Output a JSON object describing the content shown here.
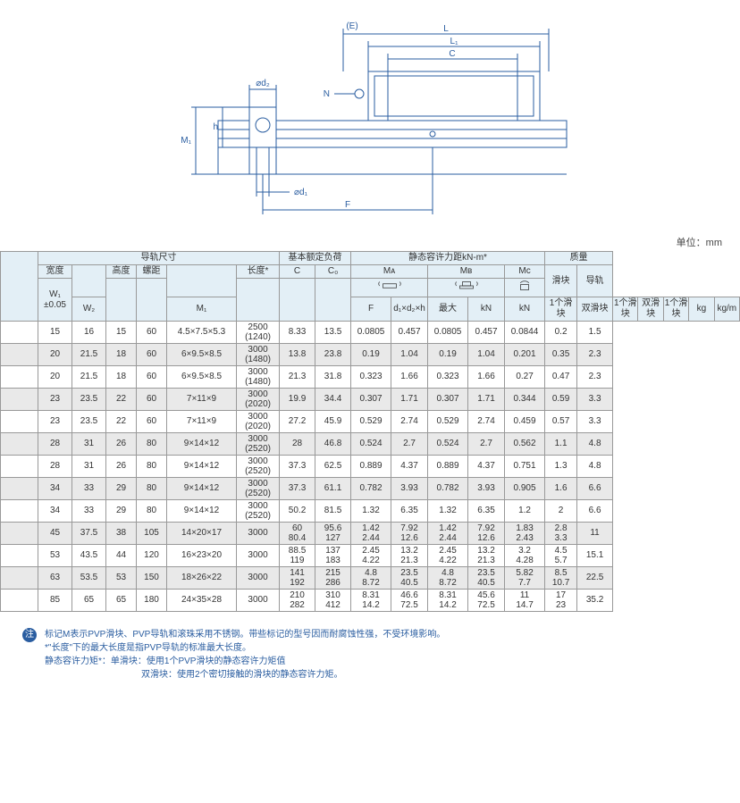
{
  "unit": "单位：mm",
  "headers": {
    "rail": "导轨尺寸",
    "load": "基本额定负荷",
    "moment": "静态容许力距kN-m*",
    "mass": "质量",
    "width": "宽度",
    "height": "高度",
    "pitch": "螺距",
    "length": "长度*",
    "max": "最大",
    "w1": "W₁\n±0.05",
    "w2": "W₂",
    "m1": "M₁",
    "f": "F",
    "d": "d₁×d₂×h",
    "c": "C",
    "c0": "C₀",
    "kn": "kN",
    "ma": "Mᴀ",
    "mb": "Mʙ",
    "mc": "Mᴄ",
    "single": "1个滑块",
    "double": "双滑块",
    "slider": "滑块",
    "rail_mass": "导轨",
    "kg": "kg",
    "kgm": "kg/m"
  },
  "rows": [
    {
      "w1": "15",
      "w2": "16",
      "m1": "15",
      "f": "60",
      "d": "4.5×7.5×5.3",
      "len": "2500\n(1240)",
      "c": "8.33",
      "c0": "13.5",
      "ma1": "0.0805",
      "ma2": "0.457",
      "mb1": "0.0805",
      "mb2": "0.457",
      "mc": "0.0844",
      "kg": "0.2",
      "kgm": "1.5",
      "alt": false
    },
    {
      "w1": "20",
      "w2": "21.5",
      "m1": "18",
      "f": "60",
      "d": "6×9.5×8.5",
      "len": "3000\n(1480)",
      "c": "13.8",
      "c0": "23.8",
      "ma1": "0.19",
      "ma2": "1.04",
      "mb1": "0.19",
      "mb2": "1.04",
      "mc": "0.201",
      "kg": "0.35",
      "kgm": "2.3",
      "alt": true
    },
    {
      "w1": "20",
      "w2": "21.5",
      "m1": "18",
      "f": "60",
      "d": "6×9.5×8.5",
      "len": "3000\n(1480)",
      "c": "21.3",
      "c0": "31.8",
      "ma1": "0.323",
      "ma2": "1.66",
      "mb1": "0.323",
      "mb2": "1.66",
      "mc": "0.27",
      "kg": "0.47",
      "kgm": "2.3",
      "alt": false
    },
    {
      "w1": "23",
      "w2": "23.5",
      "m1": "22",
      "f": "60",
      "d": "7×11×9",
      "len": "3000\n(2020)",
      "c": "19.9",
      "c0": "34.4",
      "ma1": "0.307",
      "ma2": "1.71",
      "mb1": "0.307",
      "mb2": "1.71",
      "mc": "0.344",
      "kg": "0.59",
      "kgm": "3.3",
      "alt": true
    },
    {
      "w1": "23",
      "w2": "23.5",
      "m1": "22",
      "f": "60",
      "d": "7×11×9",
      "len": "3000\n(2020)",
      "c": "27.2",
      "c0": "45.9",
      "ma1": "0.529",
      "ma2": "2.74",
      "mb1": "0.529",
      "mb2": "2.74",
      "mc": "0.459",
      "kg": "0.57",
      "kgm": "3.3",
      "alt": false
    },
    {
      "w1": "28",
      "w2": "31",
      "m1": "26",
      "f": "80",
      "d": "9×14×12",
      "len": "3000\n(2520)",
      "c": "28",
      "c0": "46.8",
      "ma1": "0.524",
      "ma2": "2.7",
      "mb1": "0.524",
      "mb2": "2.7",
      "mc": "0.562",
      "kg": "1.1",
      "kgm": "4.8",
      "alt": true
    },
    {
      "w1": "28",
      "w2": "31",
      "m1": "26",
      "f": "80",
      "d": "9×14×12",
      "len": "3000\n(2520)",
      "c": "37.3",
      "c0": "62.5",
      "ma1": "0.889",
      "ma2": "4.37",
      "mb1": "0.889",
      "mb2": "4.37",
      "mc": "0.751",
      "kg": "1.3",
      "kgm": "4.8",
      "alt": false
    },
    {
      "w1": "34",
      "w2": "33",
      "m1": "29",
      "f": "80",
      "d": "9×14×12",
      "len": "3000\n(2520)",
      "c": "37.3",
      "c0": "61.1",
      "ma1": "0.782",
      "ma2": "3.93",
      "mb1": "0.782",
      "mb2": "3.93",
      "mc": "0.905",
      "kg": "1.6",
      "kgm": "6.6",
      "alt": true
    },
    {
      "w1": "34",
      "w2": "33",
      "m1": "29",
      "f": "80",
      "d": "9×14×12",
      "len": "3000\n(2520)",
      "c": "50.2",
      "c0": "81.5",
      "ma1": "1.32",
      "ma2": "6.35",
      "mb1": "1.32",
      "mb2": "6.35",
      "mc": "1.2",
      "kg": "2",
      "kgm": "6.6",
      "alt": false
    },
    {
      "w1": "45",
      "w2": "37.5",
      "m1": "38",
      "f": "105",
      "d": "14×20×17",
      "len": "3000",
      "c": "60\n80.4",
      "c0": "95.6\n127",
      "ma1": "1.42\n2.44",
      "ma2": "7.92\n12.6",
      "mb1": "1.42\n2.44",
      "mb2": "7.92\n12.6",
      "mc": "1.83\n2.43",
      "kg": "2.8\n3.3",
      "kgm": "11",
      "alt": true
    },
    {
      "w1": "53",
      "w2": "43.5",
      "m1": "44",
      "f": "120",
      "d": "16×23×20",
      "len": "3000",
      "c": "88.5\n119",
      "c0": "137\n183",
      "ma1": "2.45\n4.22",
      "ma2": "13.2\n21.3",
      "mb1": "2.45\n4.22",
      "mb2": "13.2\n21.3",
      "mc": "3.2\n4.28",
      "kg": "4.5\n5.7",
      "kgm": "15.1",
      "alt": false
    },
    {
      "w1": "63",
      "w2": "53.5",
      "m1": "53",
      "f": "150",
      "d": "18×26×22",
      "len": "3000",
      "c": "141\n192",
      "c0": "215\n286",
      "ma1": "4.8\n8.72",
      "ma2": "23.5\n40.5",
      "mb1": "4.8\n8.72",
      "mb2": "23.5\n40.5",
      "mc": "5.82\n7.7",
      "kg": "8.5\n10.7",
      "kgm": "22.5",
      "alt": true
    },
    {
      "w1": "85",
      "w2": "65",
      "m1": "65",
      "f": "180",
      "d": "24×35×28",
      "len": "3000",
      "c": "210\n282",
      "c0": "310\n412",
      "ma1": "8.31\n14.2",
      "ma2": "46.6\n72.5",
      "mb1": "8.31\n14.2",
      "mb2": "45.6\n72.5",
      "mc": "11\n14.7",
      "kg": "17\n23",
      "kgm": "35.2",
      "alt": false
    }
  ],
  "notes": {
    "badge": "注",
    "line1": "标记M表示PVP滑块、PVP导轨和滚珠采用不锈钢。带些标记的型号因而耐腐蚀性强，不受环境影响。",
    "line2": "*\"长度\"下的最大长度是指PVP导轨的标准最大长度。",
    "line3": "静态容许力矩*：单滑块：使用1个PVP滑块的静态容许力矩值",
    "line4": "双滑块：使用2个密切接触的滑块的静态容许力矩。"
  },
  "diagram_labels": {
    "E": "(E)",
    "L": "L",
    "L1": "L₁",
    "C": "C",
    "N": "N",
    "d2": "⌀d₂",
    "d1": "⌀d₁",
    "M1": "M₁",
    "h": "h",
    "F": "F"
  }
}
